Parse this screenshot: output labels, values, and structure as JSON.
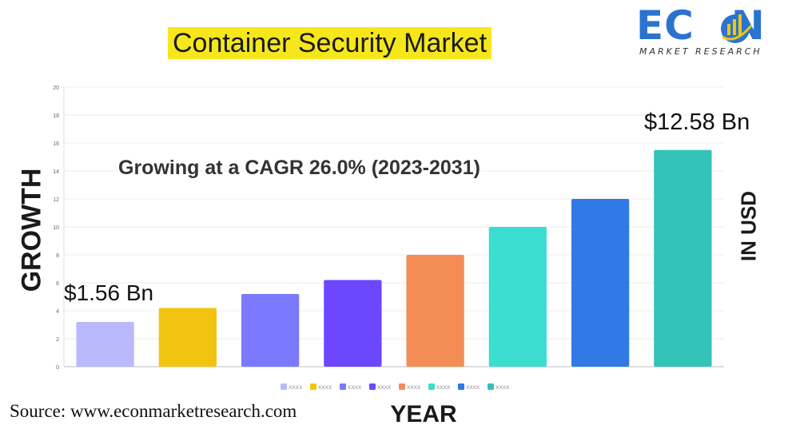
{
  "header": {
    "title": "Container Security Market"
  },
  "logo": {
    "word": "ECON",
    "sub": "MARKET RESEARCH",
    "colors": {
      "primary": "#2a73cf",
      "accent": "#f2c40f"
    }
  },
  "chart_data": {
    "type": "bar",
    "title": "Container Security Market",
    "subtitle": "Growing at a CAGR 26.0% (2023-2031)",
    "xlabel": "YEAR",
    "ylabel": "GROWTH",
    "ylabel_right": "IN USD",
    "ylim": [
      0,
      20
    ],
    "yticks": [
      0,
      2,
      4,
      6,
      8,
      10,
      12,
      14,
      16,
      18,
      20
    ],
    "grid": true,
    "legend_position": "bottom",
    "categories": [
      "XXXX",
      "XXXX",
      "XXXX",
      "XXXX",
      "XXXX",
      "XXXX",
      "XXXX",
      "XXXX"
    ],
    "values": [
      3.2,
      4.2,
      5.2,
      6.2,
      8.0,
      10.0,
      12.0,
      15.5
    ],
    "colors": [
      "#b9b9fb",
      "#f2c40f",
      "#7b7afe",
      "#6c47fe",
      "#f48c56",
      "#3bddd0",
      "#2f7ae5",
      "#34c3b8"
    ],
    "annotations": {
      "start": "$1.56 Bn",
      "end": "$12.58 Bn"
    }
  },
  "footer": {
    "source": "Source: www.econmarketresearch.com"
  }
}
